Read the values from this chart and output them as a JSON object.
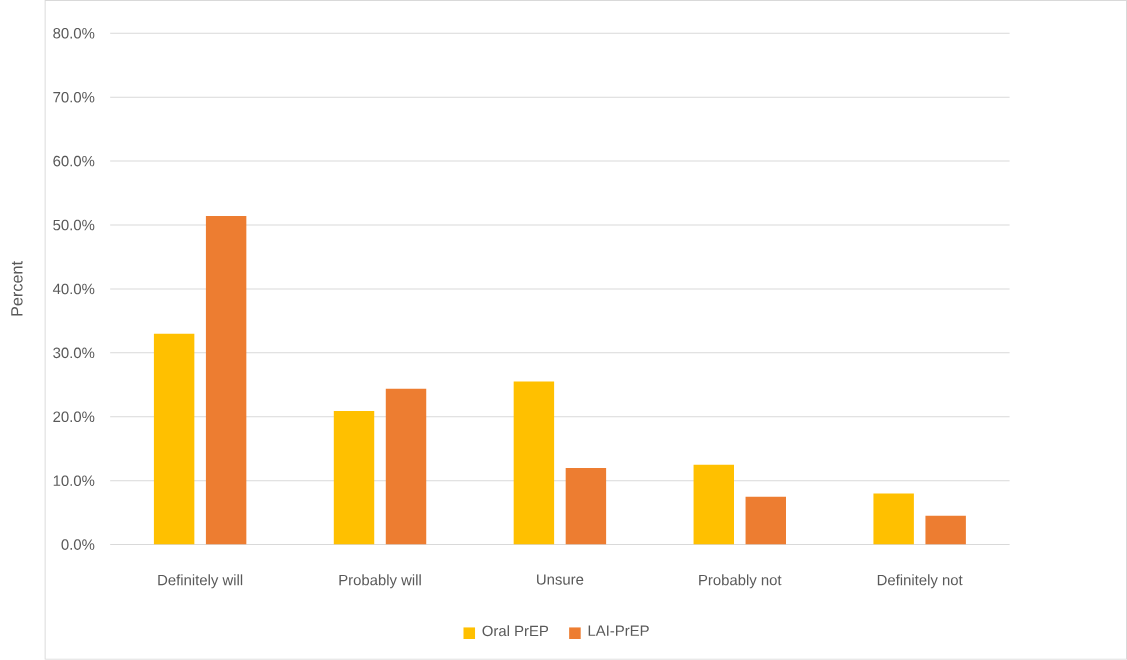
{
  "chart_data": {
    "type": "bar",
    "ylabel": "Percent",
    "categories": [
      "Definitely will",
      "Probably will",
      "Unsure",
      "Probably not",
      "Definitely not"
    ],
    "series": [
      {
        "name": "Oral PrEP",
        "color": "#ffc000",
        "values": [
          33.0,
          20.9,
          25.5,
          12.5,
          8.0
        ]
      },
      {
        "name": "LAI-PrEP",
        "color": "#ed7d31",
        "values": [
          51.4,
          24.4,
          12.0,
          7.5,
          4.5
        ]
      }
    ],
    "ylim": [
      0,
      80
    ],
    "yticks": [
      {
        "value": 0,
        "label": "0.0%"
      },
      {
        "value": 10,
        "label": "10.0%"
      },
      {
        "value": 20,
        "label": "20.0%"
      },
      {
        "value": 30,
        "label": "30.0%"
      },
      {
        "value": 40,
        "label": "40.0%"
      },
      {
        "value": 50,
        "label": "50.0%"
      },
      {
        "value": 60,
        "label": "60.0%"
      },
      {
        "value": 70,
        "label": "70.0%"
      },
      {
        "value": 80,
        "label": "80.0%"
      }
    ],
    "grid": "y",
    "legend": "bottom"
  }
}
